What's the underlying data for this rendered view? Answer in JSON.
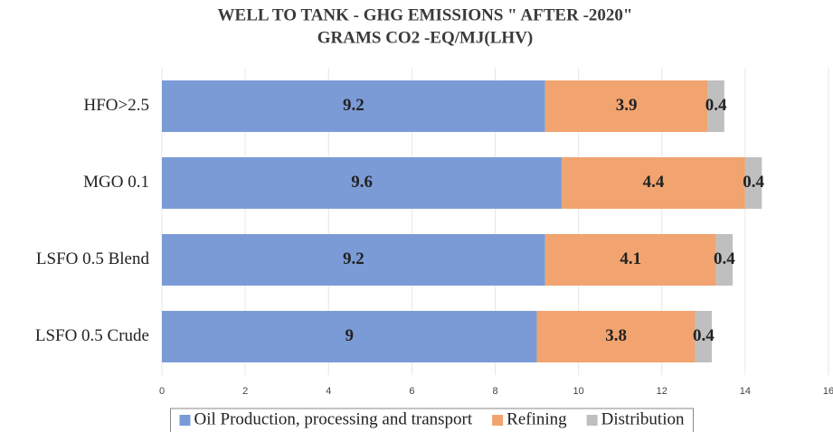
{
  "chart_data": {
    "type": "stacked-barh",
    "title": "WELL TO TANK - GHG EMISSIONS \" AFTER -2020\"",
    "subtitle": "GRAMS CO2 -EQ/MJ(LHV)",
    "categories": [
      "HFO>2.5",
      "MGO 0.1",
      "LSFO 0.5 Blend",
      "LSFO 0.5 Crude"
    ],
    "series": [
      {
        "name": "Oil Production, processing and transport",
        "color": "#7b9bd7",
        "values": [
          9.2,
          9.6,
          9.2,
          9
        ]
      },
      {
        "name": "Refining",
        "color": "#f1a46f",
        "values": [
          3.9,
          4.4,
          4.1,
          3.8
        ]
      },
      {
        "name": "Distribution",
        "color": "#bfbfbf",
        "values": [
          0.4,
          0.4,
          0.4,
          0.4
        ]
      }
    ],
    "xlim": [
      0,
      16
    ],
    "xticks": [
      0,
      2,
      4,
      6,
      8,
      10,
      12,
      14,
      16
    ],
    "grid": true,
    "legend": "bottom"
  }
}
